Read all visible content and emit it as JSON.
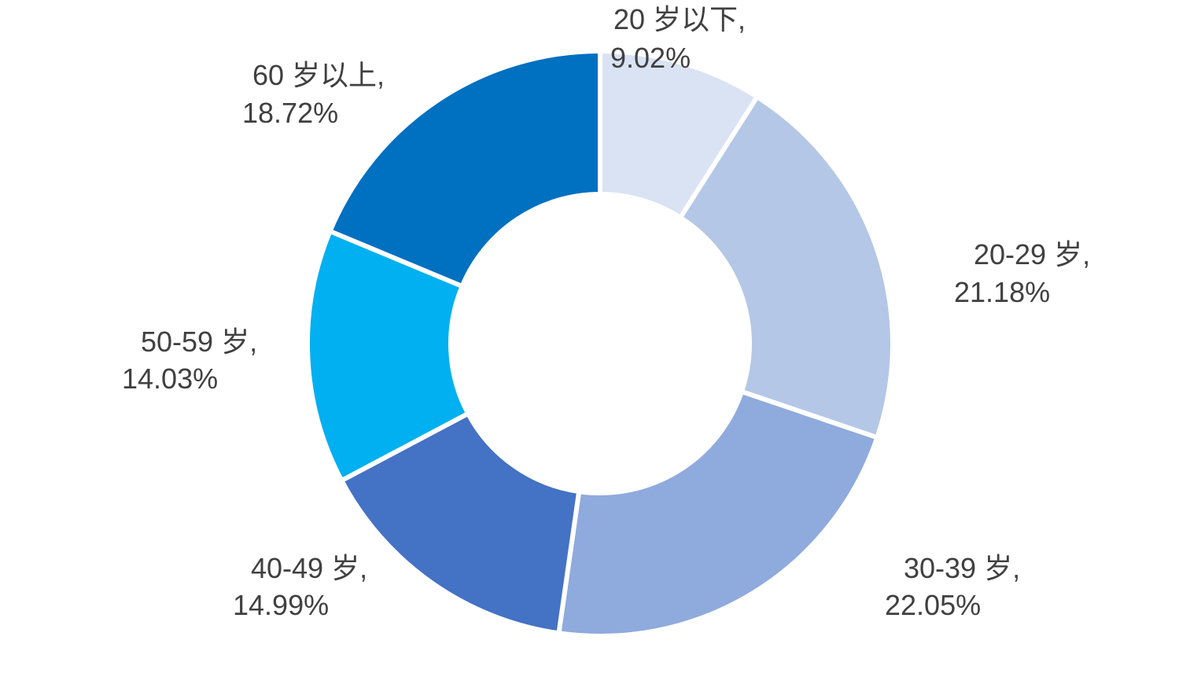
{
  "chart_data": {
    "type": "pie",
    "donut": true,
    "title": "",
    "start_angle_deg": 0,
    "direction": "clockwise",
    "slices": [
      {
        "category": "20 岁以下",
        "label_name": "20 岁以下,",
        "value": 9.02,
        "label_value": "9.02%",
        "color": "#DAE3F3"
      },
      {
        "category": "20-29 岁",
        "label_name": "20-29 岁,",
        "value": 21.18,
        "label_value": "21.18%",
        "color": "#B4C7E7"
      },
      {
        "category": "30-39 岁",
        "label_name": "30-39 岁,",
        "value": 22.05,
        "label_value": "22.05%",
        "color": "#8FAADC"
      },
      {
        "category": "40-49 岁",
        "label_name": "40-49 岁,",
        "value": 14.99,
        "label_value": "14.99%",
        "color": "#4472C4"
      },
      {
        "category": "50-59 岁",
        "label_name": "50-59 岁,",
        "value": 14.03,
        "label_value": "14.03%",
        "color": "#00B0F0"
      },
      {
        "category": "60 岁以上",
        "label_name": "60 岁以上,",
        "value": 18.72,
        "label_value": "18.72%",
        "color": "#0070C0"
      }
    ],
    "label_color": "#404040",
    "separator_color": "#FFFFFF",
    "legend": "none"
  }
}
